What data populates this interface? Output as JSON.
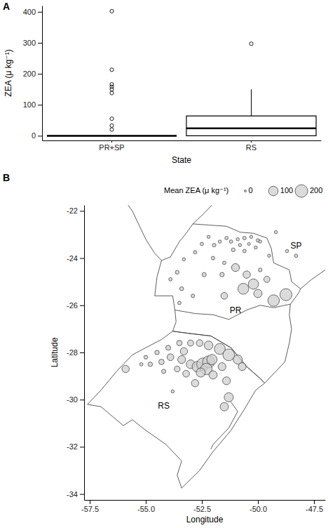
{
  "chart_data": [
    {
      "type": "box",
      "panel": "A",
      "x_label": "State",
      "y_label": "ZEA (μ kg⁻¹)",
      "categories": [
        "PR+SP",
        "RS"
      ],
      "whisker_low": [
        0,
        0
      ],
      "q1": [
        0,
        0
      ],
      "median": [
        0,
        24
      ],
      "q3": [
        0,
        64
      ],
      "whisker_high": [
        0,
        150
      ],
      "outliers": [
        [
          402,
          213,
          166,
          158,
          150,
          138,
          55,
          33,
          20
        ],
        [
          297
        ]
      ],
      "ylim": [
        -15,
        420
      ],
      "yticks": [
        0,
        100,
        200,
        300,
        400
      ]
    },
    {
      "type": "bubble",
      "panel": "B",
      "x_label": "Longitude",
      "y_label": "Latitude",
      "legend_title": "Mean ZEA (μ kg⁻¹)",
      "color": "#cfcfcf",
      "x": [
        -51.2,
        -50.9,
        -50.6,
        -50.3,
        -50.0,
        -50.4,
        -50.8,
        -51.4,
        -51.7,
        -51.95,
        -52.2,
        -52.5,
        -51.1,
        -50.6,
        -50.1,
        -49.9,
        -52.8,
        -53.3,
        -52.0,
        -51.5,
        -53.6,
        -53.9,
        -53.4,
        -52.4,
        -51.6,
        -52.9,
        -53.5,
        -49.5,
        -49.9,
        -49.2,
        -48.7,
        -48.3,
        -51.0,
        -50.5,
        -50.2,
        -50.65,
        -50.0,
        -49.3,
        -48.75,
        -51.5,
        -49.6,
        -54.0,
        -53.5,
        -53.0,
        -52.6,
        -52.2,
        -51.7,
        -51.3,
        -54.5,
        -55.0,
        -54.8,
        -54.3,
        -53.9,
        -53.4,
        -53.0,
        -52.7,
        -52.45,
        -52.2,
        -52.3,
        -52.05,
        -52.55,
        -52.0,
        -51.6,
        -53.2,
        -53.6,
        -54.2,
        -55.2,
        -55.9,
        -53.8,
        -51.4,
        -52.8,
        -51.3,
        -51.5,
        -50.9,
        -50.7,
        -53.3
      ],
      "y": [
        -23.3,
        -23.2,
        -23.15,
        -23.1,
        -23.25,
        -23.4,
        -23.45,
        -23.15,
        -23.3,
        -23.45,
        -23.1,
        -23.4,
        -23.65,
        -23.7,
        -23.55,
        -23.3,
        -23.75,
        -24.05,
        -24.0,
        -24.2,
        -24.6,
        -24.9,
        -25.3,
        -24.7,
        -24.7,
        -25.6,
        -25.9,
        -23.9,
        -24.5,
        -22.9,
        -23.7,
        -23.9,
        -24.4,
        -24.7,
        -25.1,
        -25.3,
        -25.5,
        -25.8,
        -25.55,
        -25.6,
        -24.9,
        -27.8,
        -27.6,
        -27.6,
        -27.6,
        -27.7,
        -27.85,
        -28.1,
        -28.0,
        -28.2,
        -28.5,
        -28.4,
        -28.2,
        -28.3,
        -28.5,
        -28.6,
        -28.5,
        -28.4,
        -28.7,
        -28.3,
        -28.85,
        -28.95,
        -28.6,
        -28.9,
        -28.7,
        -28.8,
        -28.5,
        -28.7,
        -29.65,
        -29.2,
        -29.3,
        -29.9,
        -30.3,
        -28.3,
        -28.6,
        -27.95
      ],
      "sizes": [
        3,
        2,
        4,
        2,
        3,
        1,
        2,
        3,
        2,
        4,
        2,
        3,
        5,
        3,
        2,
        2,
        3,
        2,
        4,
        3,
        5,
        3,
        6,
        8,
        10,
        4,
        3,
        2,
        5,
        2,
        2,
        3,
        60,
        50,
        120,
        140,
        70,
        160,
        180,
        40,
        30,
        15,
        20,
        30,
        40,
        80,
        140,
        170,
        10,
        5,
        10,
        20,
        40,
        60,
        80,
        130,
        200,
        180,
        160,
        120,
        90,
        70,
        60,
        40,
        25,
        8,
        3,
        50,
        2,
        60,
        50,
        90,
        70,
        90,
        60,
        50
      ],
      "size_lim": [
        0,
        200
      ],
      "size_ticks": [
        0,
        100,
        200
      ],
      "xlim": [
        -57.75,
        -47.0
      ],
      "xticks": [
        -57.5,
        {
          "value": -55,
          "label": "-55.0"
        },
        -52.5,
        {
          "value": -50,
          "label": "-50.0"
        },
        -47.5
      ],
      "ylim": [
        -34.25,
        -21.75
      ],
      "yticks": [
        -34,
        -32,
        -30,
        -28,
        -26,
        -24,
        -22
      ],
      "outlines": [
        {
          "lon": [
            -52.9,
            -52.2,
            -51.4,
            -50.8,
            -50.2,
            -49.6,
            -49.4,
            -49.3,
            -48.6,
            -48.5,
            -48.1,
            -48.2,
            -48.55,
            -49.3,
            -49.9,
            -50.5,
            -51.3,
            -52.0,
            -52.8,
            -53.7,
            -53.8,
            -54.6,
            -54.5,
            -54.3,
            -53.9,
            -53.5,
            -53.2,
            -52.9
          ],
          "lat": [
            -22.55,
            -22.6,
            -22.65,
            -22.9,
            -22.95,
            -23.15,
            -23.6,
            -24.2,
            -24.5,
            -25.0,
            -25.3,
            -25.5,
            -25.95,
            -26.1,
            -26.0,
            -26.2,
            -26.6,
            -26.4,
            -26.35,
            -26.2,
            -25.6,
            -25.6,
            -24.8,
            -24.1,
            -23.95,
            -23.3,
            -22.95,
            -22.55
          ]
        },
        {
          "lon": [
            -53.7,
            -53.65,
            -53.8,
            -53.0,
            -52.1,
            -51.2,
            -50.5,
            -49.9,
            -49.7,
            -48.8,
            -48.6,
            -48.5,
            -48.6,
            -48.55
          ],
          "lat": [
            -26.2,
            -26.7,
            -27.1,
            -27.2,
            -27.3,
            -27.8,
            -28.6,
            -29.1,
            -29.3,
            -28.4,
            -27.6,
            -27.0,
            -26.4,
            -25.95
          ]
        },
        {
          "lon": [
            -53.8,
            -54.3,
            -55.0,
            -55.6,
            -56.3,
            -57.0,
            -57.6,
            -57.0,
            -56.0,
            -55.6,
            -55.0,
            -54.1,
            -53.4,
            -53.6,
            -53.4,
            -52.6,
            -52.0,
            -51.2,
            -50.6,
            -50.1,
            -49.7,
            -49.9,
            -50.5,
            -51.2,
            -52.1,
            -53.0,
            -53.8
          ],
          "lat": [
            -27.1,
            -27.45,
            -27.8,
            -28.1,
            -28.8,
            -29.6,
            -30.2,
            -30.3,
            -31.1,
            -30.85,
            -31.3,
            -31.9,
            -32.6,
            -33.2,
            -33.75,
            -33.0,
            -32.2,
            -31.3,
            -30.4,
            -29.6,
            -29.3,
            -29.1,
            -28.6,
            -27.8,
            -27.3,
            -27.2,
            -27.1
          ]
        },
        {
          "lon": [
            -51.2,
            -50.9,
            -51.3,
            -52.0,
            -52.1
          ],
          "lat": [
            -30.1,
            -30.5,
            -31.2,
            -31.9,
            -32.1
          ]
        },
        {
          "lon": [
            -54.3,
            -54.6,
            -55.0,
            -55.3,
            -55.6,
            -55.9
          ],
          "lat": [
            -24.1,
            -23.8,
            -23.2,
            -22.6,
            -22.0,
            -21.6
          ]
        },
        {
          "lon": [
            -52.9,
            -52.4,
            -51.9
          ],
          "lat": [
            -22.55,
            -22.1,
            -21.6
          ]
        },
        {
          "lon": [
            -48.1,
            -47.6,
            -47.0,
            -46.4
          ],
          "lat": [
            -25.3,
            -24.9,
            -24.5,
            -24.1
          ]
        }
      ],
      "region_labels": {
        "text": [
          "PR",
          "SP",
          "RS"
        ],
        "lon": [
          -51.0,
          -48.3,
          -54.2
        ],
        "lat": [
          -26.25,
          -23.5,
          -30.3
        ]
      }
    }
  ]
}
